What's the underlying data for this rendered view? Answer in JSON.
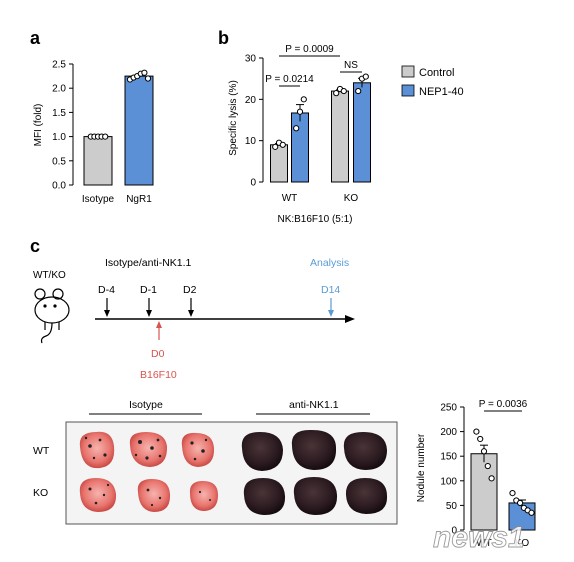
{
  "panels": {
    "a": "a",
    "b": "b",
    "c": "c"
  },
  "colors": {
    "control_gray": "#cccccc",
    "treat_blue": "#5b8fd6",
    "timeline_red": "#d9534f",
    "timeline_blue": "#5b9bd5"
  },
  "chart_data": [
    {
      "id": "a",
      "type": "bar",
      "ylabel": "MFI (fold)",
      "ylim": [
        0,
        2.5
      ],
      "yticks": [
        "0.0",
        "0.5",
        "1.0",
        "1.5",
        "2.0",
        "2.5"
      ],
      "categories": [
        "Isotype",
        "NgR1"
      ],
      "values": [
        1.0,
        2.25
      ],
      "points": [
        [
          1.0,
          1.0,
          1.0,
          1.0,
          1.0
        ],
        [
          2.18,
          2.22,
          2.25,
          2.3,
          2.32,
          2.2
        ]
      ]
    },
    {
      "id": "b",
      "type": "bar",
      "ylabel": "Specific lysis (%)",
      "xlabel": "NK:B16F10 (5:1)",
      "ylim": [
        0,
        30
      ],
      "yticks": [
        "0",
        "10",
        "20",
        "30"
      ],
      "categories": [
        "WT",
        "KO"
      ],
      "series": [
        {
          "name": "Control",
          "values": [
            9,
            22
          ],
          "points": [
            [
              8.5,
              9.5,
              9.0
            ],
            [
              21.5,
              22.5,
              22.0
            ]
          ]
        },
        {
          "name": "NEP1-40",
          "values": [
            16.7,
            24
          ],
          "points": [
            [
              13,
              17,
              20
            ],
            [
              22,
              25,
              25.5
            ]
          ]
        }
      ],
      "annotations": [
        {
          "label": "P = 0.0214",
          "from": "WT-Control",
          "to": "WT-NEP1-40"
        },
        {
          "label": "P = 0.0009",
          "from": "WT-Control",
          "to": "KO-Control"
        },
        {
          "label": "NS",
          "from": "KO-Control",
          "to": "KO-NEP1-40"
        }
      ]
    },
    {
      "id": "c-nodules",
      "type": "bar",
      "ylabel": "Nodule number",
      "ylim": [
        0,
        250
      ],
      "yticks": [
        "0",
        "50",
        "100",
        "150",
        "200",
        "250"
      ],
      "categories": [
        "WT",
        "KO"
      ],
      "values": [
        155,
        55
      ],
      "points": [
        [
          200,
          185,
          160,
          130,
          105
        ],
        [
          75,
          60,
          55,
          45,
          40,
          35
        ]
      ],
      "annotations": [
        {
          "label": "P = 0.0036",
          "from": "WT",
          "to": "KO"
        }
      ]
    }
  ],
  "timeline": {
    "mouse_label": "WT/KO",
    "treatment_label": "Isotype/anti-NK1.1",
    "analysis_label": "Analysis",
    "days_top": [
      "D-4",
      "D-1",
      "D2"
    ],
    "day_analysis": "D14",
    "day_zero": "D0",
    "tumor_label": "B16F10"
  },
  "photo": {
    "group_isotype": "Isotype",
    "group_anti": "anti-NK1.1",
    "row_wt": "WT",
    "row_ko": "KO"
  },
  "watermark": "news1"
}
